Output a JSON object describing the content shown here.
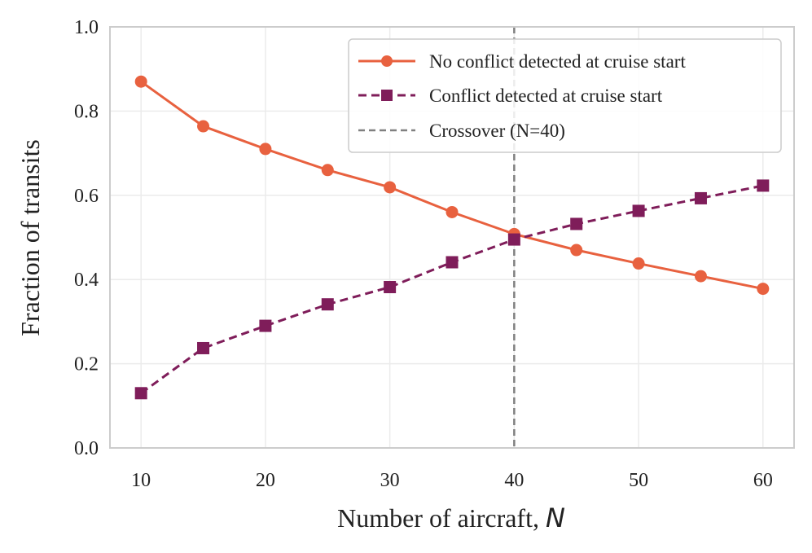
{
  "chart_data": {
    "type": "line",
    "title": "",
    "xlabel": "Number of aircraft, ",
    "xlabel_var": "N",
    "ylabel": "Fraction of transits",
    "xlim": [
      7.5,
      62.5
    ],
    "ylim": [
      0.0,
      1.0
    ],
    "xticks": [
      10,
      20,
      30,
      40,
      50,
      60
    ],
    "xtick_labels": [
      "10",
      "20",
      "30",
      "40",
      "50",
      "60"
    ],
    "yticks": [
      0.0,
      0.2,
      0.4,
      0.6,
      0.8,
      1.0
    ],
    "ytick_labels": [
      "0.0",
      "0.2",
      "0.4",
      "0.6",
      "0.8",
      "1.0"
    ],
    "grid": true,
    "legend_position": "top-right",
    "x": [
      10,
      15,
      20,
      25,
      30,
      35,
      40,
      45,
      50,
      55,
      60
    ],
    "series": [
      {
        "name": "No conflict detected at cruise start",
        "color": "#e8613f",
        "marker": "circle",
        "linestyle": "solid",
        "values": [
          0.87,
          0.764,
          0.71,
          0.66,
          0.619,
          0.56,
          0.508,
          0.47,
          0.438,
          0.408,
          0.378
        ]
      },
      {
        "name": "Conflict detected at cruise start",
        "color": "#7f1d5a",
        "marker": "square",
        "linestyle": "dashed",
        "values": [
          0.13,
          0.237,
          0.29,
          0.341,
          0.382,
          0.441,
          0.495,
          0.532,
          0.563,
          0.593,
          0.623
        ]
      }
    ],
    "reference_line": {
      "name": "Crossover (N=40)",
      "x": 40,
      "color": "#808080",
      "linestyle": "dashed"
    }
  }
}
